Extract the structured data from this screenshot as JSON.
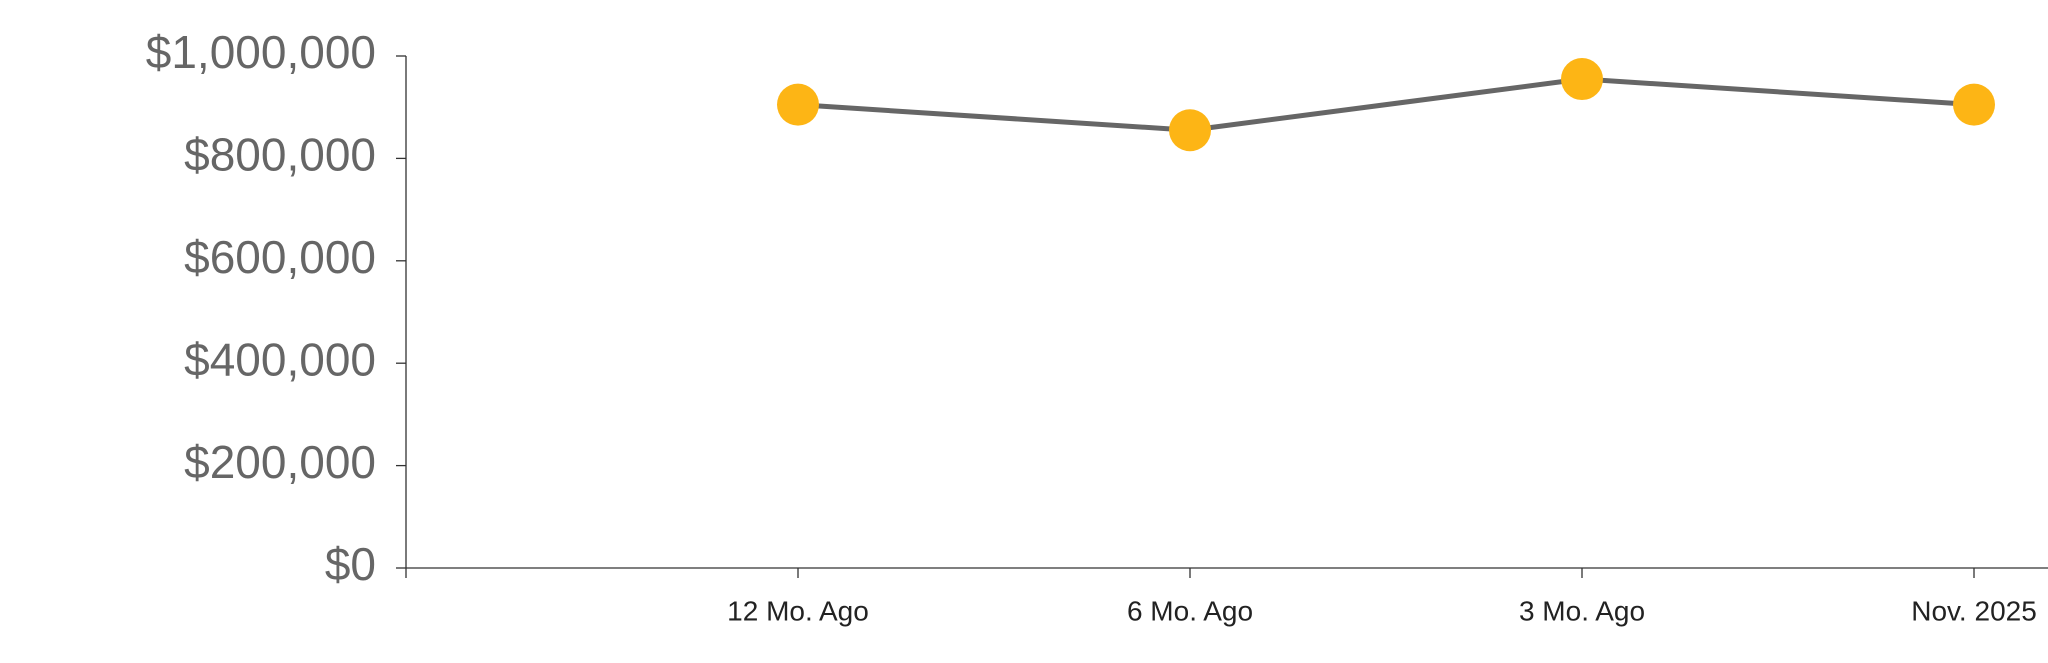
{
  "chart_data": {
    "type": "line",
    "categories": [
      null,
      "12 Mo. Ago",
      "6 Mo. Ago",
      "3 Mo. Ago",
      "Nov. 2025"
    ],
    "series": [
      {
        "color": "#666666",
        "marker_color": "#fdb515",
        "values": [
          null,
          905000,
          855000,
          955000,
          905000
        ]
      }
    ],
    "ylim": [
      0,
      1000000
    ],
    "yticks": [
      {
        "value": 0,
        "label": "$0"
      },
      {
        "value": 200000,
        "label": "$200,000"
      },
      {
        "value": 400000,
        "label": "$400,000"
      },
      {
        "value": 600000,
        "label": "$600,000"
      },
      {
        "value": 800000,
        "label": "$800,000"
      },
      {
        "value": 1000000,
        "label": "$1,000,000"
      }
    ],
    "grid": false
  }
}
